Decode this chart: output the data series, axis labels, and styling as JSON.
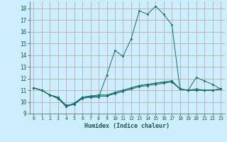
{
  "title": "",
  "xlabel": "Humidex (Indice chaleur)",
  "bg_color": "#cceeff",
  "grid_color": "#bbaaaa",
  "line_color": "#1a6b6b",
  "xlim": [
    -0.5,
    23.5
  ],
  "ylim": [
    9,
    18.6
  ],
  "yticks": [
    9,
    10,
    11,
    12,
    13,
    14,
    15,
    16,
    17,
    18
  ],
  "xticks": [
    0,
    1,
    2,
    3,
    4,
    5,
    6,
    7,
    8,
    9,
    10,
    11,
    12,
    13,
    14,
    15,
    16,
    17,
    18,
    19,
    20,
    21,
    22,
    23
  ],
  "series": [
    [
      11.2,
      11.0,
      10.6,
      10.3,
      9.6,
      9.8,
      10.4,
      10.4,
      10.4,
      12.3,
      14.4,
      13.9,
      15.4,
      17.8,
      17.5,
      18.2,
      17.5,
      16.6,
      11.1,
      11.0,
      12.1,
      11.8,
      11.5,
      11.1
    ],
    [
      11.2,
      11.0,
      10.6,
      10.4,
      9.6,
      9.9,
      10.4,
      10.5,
      10.5,
      10.5,
      10.8,
      11.0,
      11.2,
      11.4,
      11.5,
      11.6,
      11.7,
      11.8,
      11.1,
      11.0,
      11.0,
      11.0,
      11.0,
      11.1
    ],
    [
      11.2,
      11.0,
      10.6,
      10.3,
      9.7,
      9.8,
      10.3,
      10.4,
      10.5,
      10.5,
      10.7,
      10.9,
      11.1,
      11.3,
      11.4,
      11.5,
      11.6,
      11.7,
      11.1,
      11.0,
      11.0,
      11.0,
      11.0,
      11.1
    ],
    [
      11.2,
      11.0,
      10.6,
      10.4,
      9.7,
      9.8,
      10.4,
      10.5,
      10.6,
      10.6,
      10.8,
      11.0,
      11.2,
      11.4,
      11.5,
      11.6,
      11.7,
      11.8,
      11.1,
      11.0,
      11.1,
      11.0,
      11.0,
      11.1
    ]
  ]
}
